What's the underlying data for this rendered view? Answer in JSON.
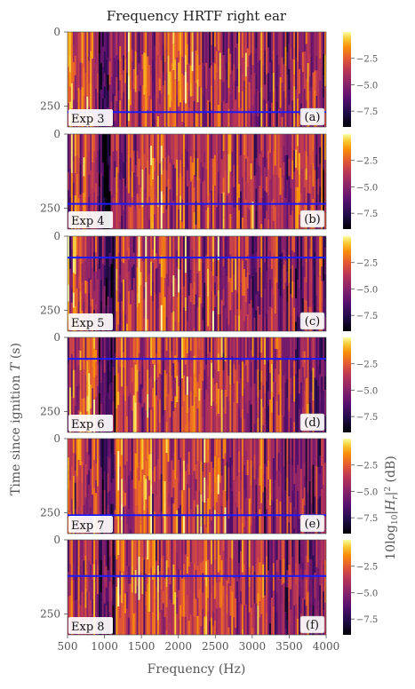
{
  "chart_data": {
    "type": "heatmap",
    "title": "Frequency HRTF right ear",
    "xlabel": "Frequency (Hz)",
    "ylabel": "Time since ignition T (s)",
    "ylabel_var": "T",
    "colorbar_label": "10log10|Hr|² (dB)",
    "xlim": [
      500,
      4000
    ],
    "x_ticks": [
      "500",
      "1000",
      "1500",
      "2000",
      "2500",
      "3000",
      "3500",
      "4000"
    ],
    "x_tick_values": [
      500,
      1000,
      1500,
      2000,
      2500,
      3000,
      3500,
      4000
    ],
    "y_ticks": [
      "0",
      "250"
    ],
    "y_tick_values": [
      0,
      250
    ],
    "ylim": [
      0,
      320
    ],
    "colorbar_ticks": [
      "−2.5",
      "−5.0",
      "−7.5"
    ],
    "colorbar_tick_values": [
      -2.5,
      -5.0,
      -7.5
    ],
    "colorbar_range": [
      -9,
      0
    ],
    "colormap": "inferno",
    "marker_line_color": "#1a1aff",
    "panels": [
      {
        "name": "Exp 3",
        "letter": "(a)",
        "marker_time": 270
      },
      {
        "name": "Exp 4",
        "letter": "(b)",
        "marker_time": 235
      },
      {
        "name": "Exp 5",
        "letter": "(c)",
        "marker_time": 72
      },
      {
        "name": "Exp 6",
        "letter": "(d)",
        "marker_time": 72
      },
      {
        "name": "Exp 7",
        "letter": "(e)",
        "marker_time": 258
      },
      {
        "name": "Exp 8",
        "letter": "(f)",
        "marker_time": 122
      }
    ]
  }
}
